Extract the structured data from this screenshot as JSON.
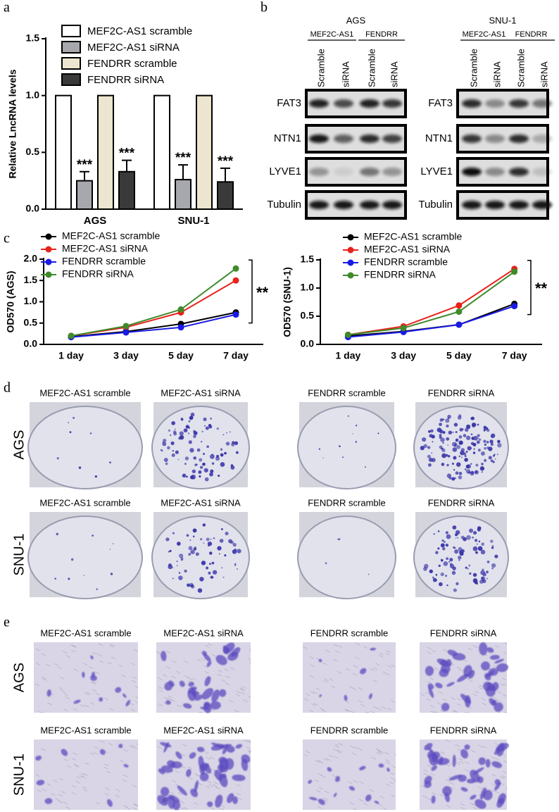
{
  "panel_labels": [
    "a",
    "b",
    "c",
    "d",
    "e"
  ],
  "chart_data": [
    {
      "type": "bar",
      "ylabel": "Relative LncRNA levels",
      "categories": [
        "AGS",
        "SNU-1"
      ],
      "series": [
        {
          "name": "MEF2C-AS1 scramble",
          "color": "#ffffff",
          "values": [
            1,
            1
          ]
        },
        {
          "name": "MEF2C-AS1 siRNA",
          "color": "#a7a7ae",
          "values": [
            0.25,
            0.26
          ],
          "errors": [
            0.08,
            0.13
          ],
          "annotations": [
            "***",
            "***"
          ]
        },
        {
          "name": "FENDRR scramble",
          "color": "#ece5cf",
          "values": [
            1,
            1
          ]
        },
        {
          "name": "FENDRR siRNA",
          "color": "#3a3a3a",
          "values": [
            0.33,
            0.24
          ],
          "errors": [
            0.1,
            0.12
          ],
          "annotations": [
            "***",
            "***"
          ]
        }
      ],
      "ylim": [
        0,
        1.5
      ],
      "yticks": [
        {
          "value": 0,
          "label": "0.0"
        },
        {
          "value": 0.5,
          "label": "0.5"
        },
        {
          "value": 1,
          "label": "1.0"
        },
        {
          "value": 1.5,
          "label": "1.5"
        }
      ],
      "legend": "upper left"
    },
    {
      "type": "line",
      "ylabel": "OD570 (AGS)",
      "categories": [
        "1 day",
        "3 day",
        "5 day",
        "7 day"
      ],
      "series": [
        {
          "name": "MEF2C-AS1 scramble",
          "color": "#000000",
          "values": [
            0.18,
            0.3,
            0.48,
            0.75
          ]
        },
        {
          "name": "MEF2C-AS1 siRNA",
          "color": "#e8211b",
          "values": [
            0.2,
            0.4,
            0.75,
            1.5
          ]
        },
        {
          "name": "FENDRR scramble",
          "color": "#1a1ae6",
          "values": [
            0.17,
            0.28,
            0.4,
            0.7
          ]
        },
        {
          "name": "FENDRR siRNA",
          "color": "#3f8a2a",
          "values": [
            0.2,
            0.43,
            0.82,
            1.78
          ]
        }
      ],
      "ylim": [
        0,
        2
      ],
      "yticks": [
        {
          "value": 0,
          "label": "0.0"
        },
        {
          "value": 0.5,
          "label": "0.5"
        },
        {
          "value": 1,
          "label": "1.0"
        },
        {
          "value": 1.5,
          "label": "1.5"
        },
        {
          "value": 2,
          "label": "2.0"
        }
      ],
      "annotation": "**",
      "legend": "upper left"
    },
    {
      "type": "line",
      "ylabel": "OD570 (SNU-1)",
      "categories": [
        "1 day",
        "3 day",
        "5 day",
        "7 day"
      ],
      "series": [
        {
          "name": "MEF2C-AS1 scramble",
          "color": "#000000",
          "values": [
            0.15,
            0.23,
            0.35,
            0.72
          ]
        },
        {
          "name": "MEF2C-AS1 siRNA",
          "color": "#e8211b",
          "values": [
            0.17,
            0.32,
            0.69,
            1.34
          ]
        },
        {
          "name": "FENDRR scramble",
          "color": "#1a1ae6",
          "values": [
            0.13,
            0.22,
            0.35,
            0.68
          ]
        },
        {
          "name": "FENDRR siRNA",
          "color": "#3f8a2a",
          "values": [
            0.17,
            0.29,
            0.58,
            1.29
          ]
        }
      ],
      "ylim": [
        0,
        1.5
      ],
      "yticks": [
        {
          "value": 0,
          "label": "0.0"
        },
        {
          "value": 0.5,
          "label": "0.5"
        },
        {
          "value": 1,
          "label": "1.0"
        },
        {
          "value": 1.5,
          "label": "1.5"
        }
      ],
      "annotation": "**",
      "legend": "upper left"
    }
  ],
  "blots": [
    {
      "title": "AGS",
      "groups": [
        "MEF2C-AS1",
        "FENDRR"
      ],
      "lanes": [
        "Scramble",
        "siRNA",
        "Scramble",
        "siRNA"
      ],
      "rows": [
        "FAT3",
        "NTN1",
        "LYVE1",
        "Tubulin"
      ]
    },
    {
      "title": "SNU-1",
      "groups": [
        "MEF2C-AS1",
        "FENDRR"
      ],
      "lanes": [
        "Scramble",
        "siRNA",
        "Scramble",
        "siRNA"
      ],
      "rows": [
        "FAT3",
        "NTN1",
        "LYVE1",
        "Tubulin"
      ]
    }
  ],
  "colony_assay": {
    "rows": [
      "AGS",
      "SNU-1"
    ],
    "titles": [
      [
        "MEF2C-AS1 scramble",
        "MEF2C-AS1 siRNA",
        "FENDRR scramble",
        "FENDRR siRNA"
      ],
      [
        "MEF2C-AS1 scramble",
        "MEF2C-AS1 siRNA",
        "FENDRR scramble",
        "FENDRR siRNA"
      ]
    ]
  },
  "transwell_assay": {
    "rows": [
      "AGS",
      "SNU-1"
    ],
    "titles": [
      [
        "MEF2C-AS1 scramble",
        "MEF2C-AS1 siRNA",
        "FENDRR scramble",
        "FENDRR siRNA"
      ],
      [
        "MEF2C-AS1 scramble",
        "MEF2C-AS1 siRNA",
        "FENDRR scramble",
        "FENDRR siRNA"
      ]
    ]
  }
}
